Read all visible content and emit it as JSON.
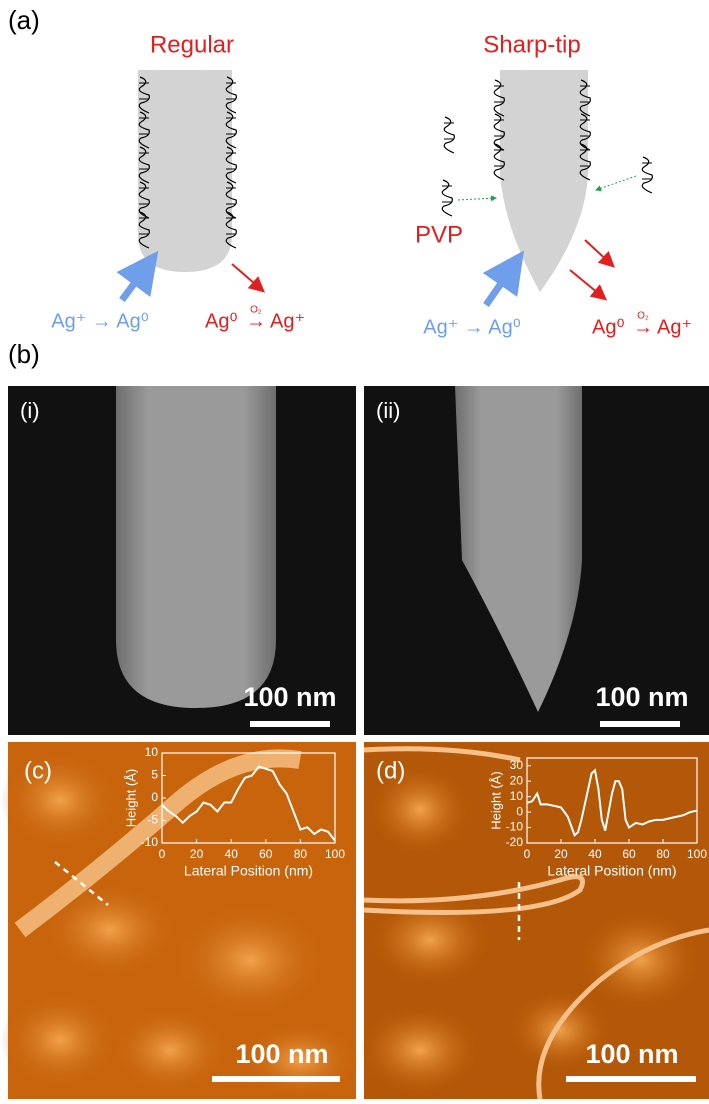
{
  "panel_a": {
    "label": "(a)",
    "regular": {
      "title": "Regular",
      "reduction": "Ag⁺ → Ag⁰",
      "ox_left": "Ag⁰",
      "ox_arrow": "→",
      "ox_right": "Ag⁺",
      "ox_over": "O₂"
    },
    "sharp": {
      "title": "Sharp-tip",
      "pvp": "PVP",
      "reduction": "Ag⁺ → Ag⁰",
      "ox_left": "Ag⁰",
      "ox_arrow": "→",
      "ox_right": "Ag⁺",
      "ox_over": "O₂"
    }
  },
  "panel_b": {
    "label": "(b)",
    "i": {
      "label": "(i)",
      "scale": "100 nm"
    },
    "ii": {
      "label": "(ii)",
      "scale": "100 nm"
    }
  },
  "panel_c": {
    "label": "(c)",
    "scale": "100 nm"
  },
  "panel_d": {
    "label": "(d)",
    "scale": "100 nm"
  },
  "chart_data": [
    {
      "type": "line",
      "x_label": "Lateral Position (nm)",
      "y_label": "Height (Å)",
      "xlim": [
        0,
        100
      ],
      "ylim": [
        -10,
        10
      ],
      "xticks": [
        0,
        20,
        40,
        60,
        80,
        100
      ],
      "yticks": [
        -10,
        -5,
        0,
        5,
        10
      ],
      "color": "#ffffff",
      "x": [
        0,
        4,
        8,
        12,
        16,
        20,
        24,
        28,
        32,
        36,
        40,
        44,
        48,
        52,
        56,
        60,
        64,
        68,
        72,
        76,
        80,
        84,
        88,
        92,
        96,
        100
      ],
      "values": [
        -1.5,
        -3,
        -4,
        -5.5,
        -4,
        -3,
        -1,
        -1.5,
        -3,
        -1,
        -1,
        2,
        4.5,
        5,
        7,
        6.5,
        6,
        3,
        1,
        -3,
        -7,
        -6.5,
        -8,
        -7,
        -7.5,
        -9.5
      ]
    },
    {
      "type": "line",
      "x_label": "Lateral Position (nm)",
      "y_label": "Height (Å)",
      "xlim": [
        0,
        100
      ],
      "ylim": [
        -20,
        35
      ],
      "xticks": [
        0,
        20,
        40,
        60,
        80,
        100
      ],
      "yticks": [
        -20,
        -10,
        0,
        10,
        20,
        30
      ],
      "color": "#ffffff",
      "x": [
        0,
        3,
        6,
        8,
        12,
        16,
        20,
        24,
        28,
        30,
        32,
        34,
        36,
        38,
        40,
        42,
        44,
        46,
        48,
        50,
        52,
        54,
        56,
        58,
        60,
        64,
        68,
        72,
        76,
        80,
        84,
        88,
        92,
        96,
        100
      ],
      "values": [
        6,
        7,
        12,
        5,
        5,
        4,
        3,
        -3,
        -15,
        -13,
        -5,
        5,
        15,
        25,
        27,
        15,
        -5,
        -12,
        0,
        12,
        20,
        20,
        15,
        -5,
        -10,
        -7,
        -8,
        -6,
        -5,
        -5,
        -4,
        -3,
        -2,
        0,
        1
      ]
    }
  ]
}
